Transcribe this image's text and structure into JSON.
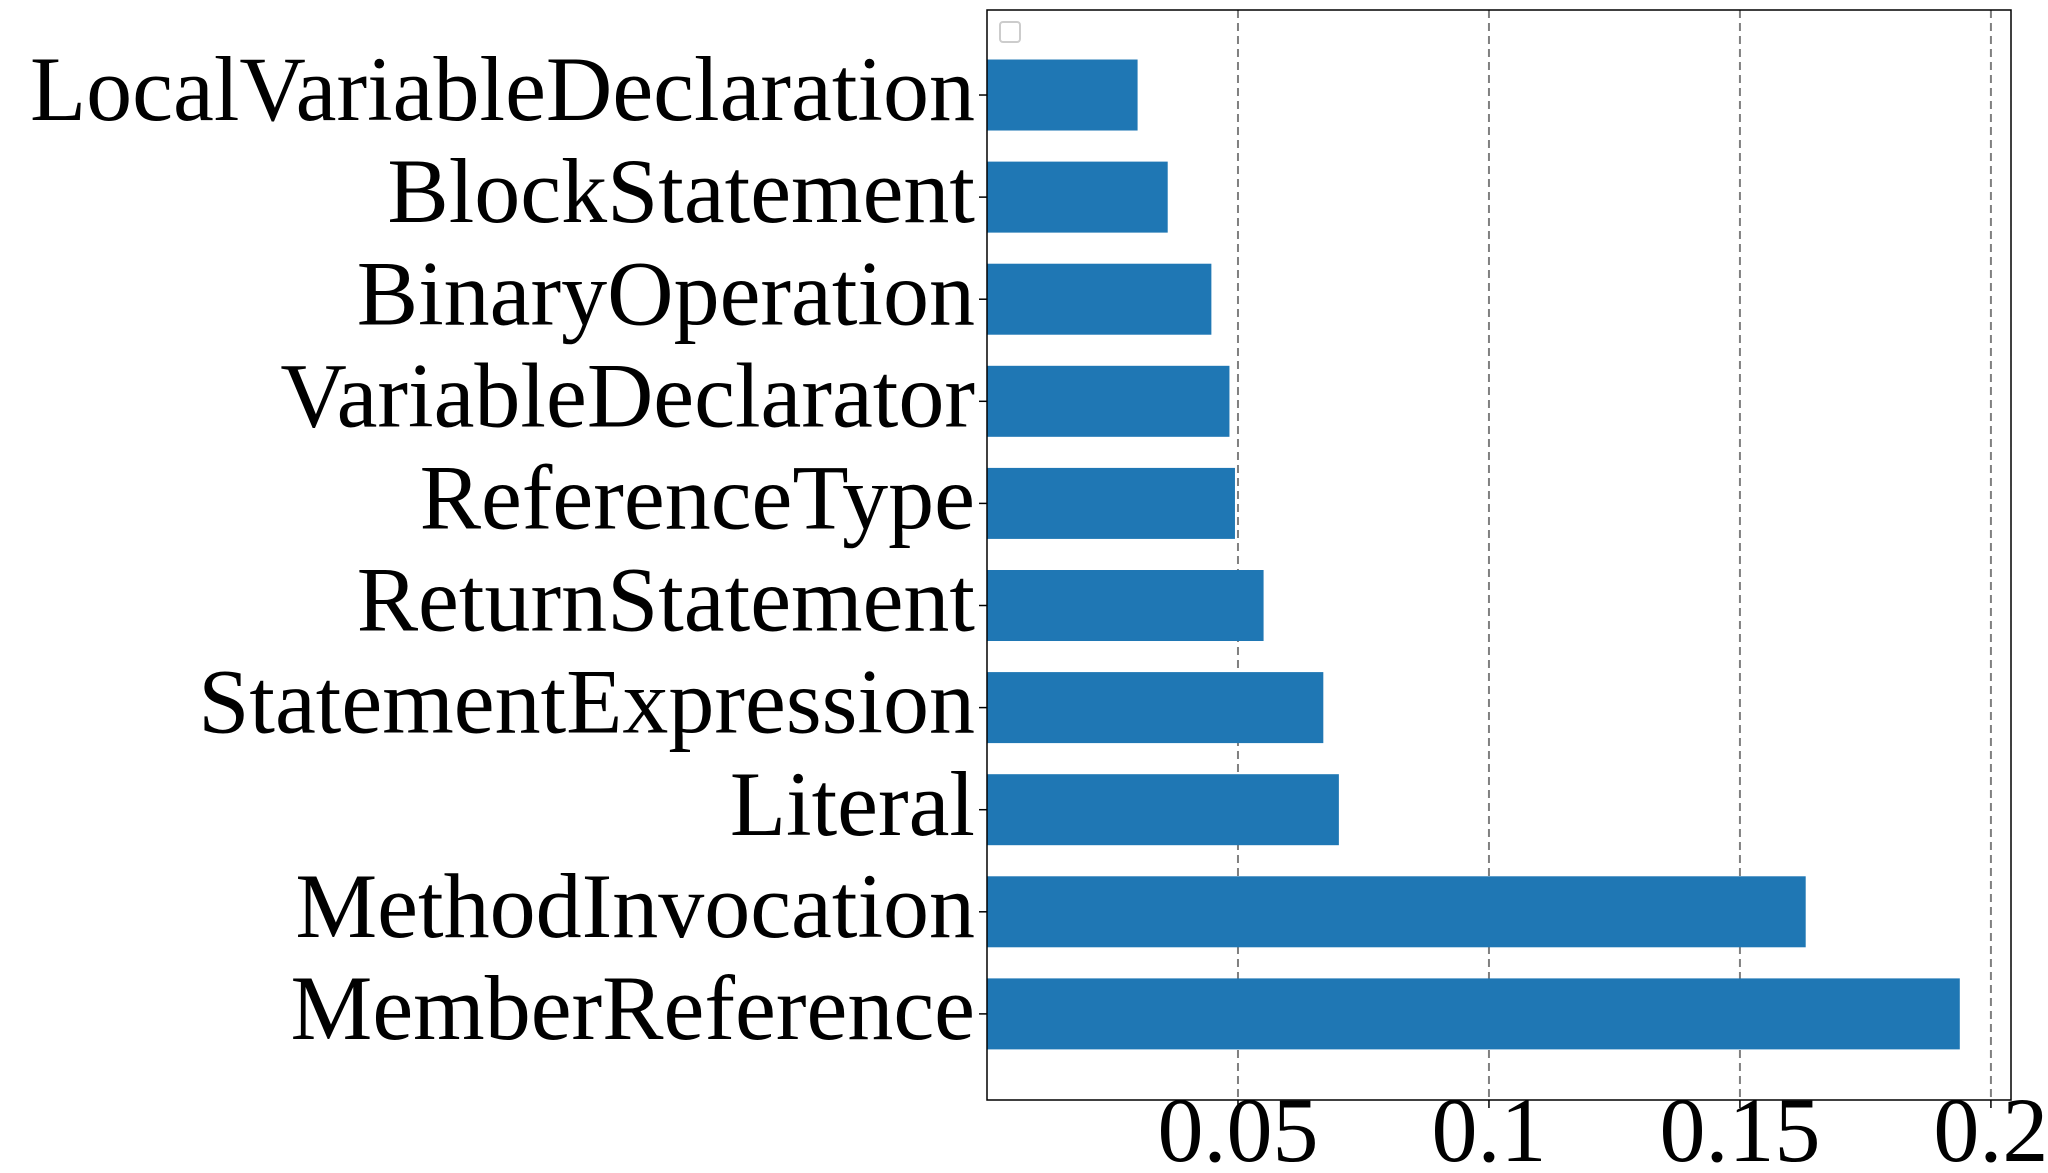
{
  "chart_data": {
    "type": "bar",
    "orientation": "horizontal",
    "categories": [
      "LocalVariableDeclaration",
      "BlockStatement",
      "BinaryOperation",
      "VariableDeclarator",
      "ReferenceType",
      "ReturnStatement",
      "StatementExpression",
      "Literal",
      "MethodInvocation",
      "MemberReference"
    ],
    "values": [
      0.03,
      0.036,
      0.0447,
      0.0483,
      0.0494,
      0.0551,
      0.067,
      0.0701,
      0.1631,
      0.1938
    ],
    "color": "#1f77b4",
    "xlim": [
      0,
      0.204
    ],
    "xticks": [
      0.05,
      0.1,
      0.15,
      0.2
    ],
    "grid": true
  }
}
